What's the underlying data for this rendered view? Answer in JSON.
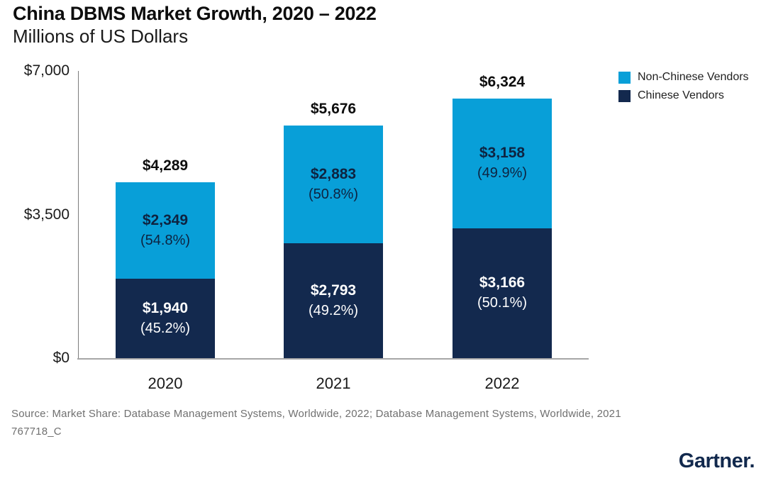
{
  "header": {
    "title": "China DBMS Market Growth, 2020 – 2022",
    "subtitle": "Millions of US Dollars"
  },
  "legend": [
    {
      "label": "Non-Chinese Vendors",
      "color": "#089fd8"
    },
    {
      "label": "Chinese Vendors",
      "color": "#13294e"
    }
  ],
  "chart_data": {
    "type": "bar",
    "stacked": true,
    "title": "China DBMS Market Growth, 2020 – 2022",
    "subtitle": "Millions of US Dollars",
    "categories": [
      "2020",
      "2021",
      "2022"
    ],
    "series": [
      {
        "name": "Chinese Vendors",
        "color": "#13294e",
        "text_color": "#ffffff",
        "values": [
          1940,
          2793,
          3166
        ],
        "value_labels": [
          "$1,940",
          "$2,793",
          "$3,166"
        ],
        "pct_labels": [
          "(45.2%)",
          "(49.2%)",
          "(50.1%)"
        ]
      },
      {
        "name": "Non-Chinese Vendors",
        "color": "#089fd8",
        "text_color": "#0e2340",
        "values": [
          2349,
          2883,
          3158
        ],
        "value_labels": [
          "$2,349",
          "$2,883",
          "$3,158"
        ],
        "pct_labels": [
          "(54.8%)",
          "(50.8%)",
          "(49.9%)"
        ]
      }
    ],
    "totals": [
      4289,
      5676,
      6324
    ],
    "total_labels": [
      "$4,289",
      "$5,676",
      "$6,324"
    ],
    "ylim": [
      0,
      7000
    ],
    "yticks": [
      {
        "label": "$7,000",
        "value": 7000
      },
      {
        "label": "$3,500",
        "value": 3500
      },
      {
        "label": "$0",
        "value": 0
      }
    ],
    "grid": false,
    "legend_position": "top-right"
  },
  "footer": {
    "source_line1": "Source: Market Share: Database Management Systems, Worldwide, 2022; Database Management Systems, Worldwide, 2021",
    "source_line2": "767718_C",
    "brand": "Gartner",
    "brand_suffix": "."
  }
}
